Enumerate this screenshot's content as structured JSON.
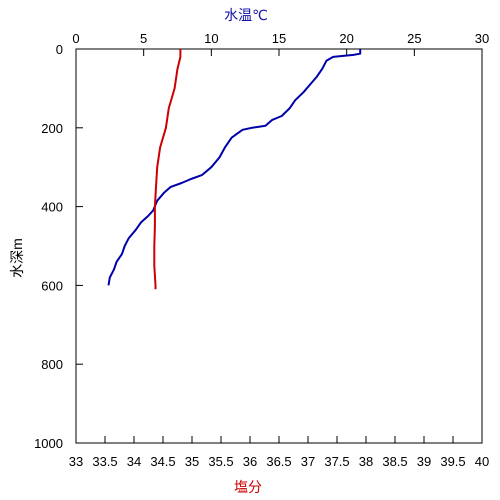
{
  "chart_data": {
    "type": "line",
    "title": "",
    "top_axis": {
      "label": "水温℃",
      "color": "#1111aa",
      "range": [
        0,
        30
      ],
      "ticks": [
        "0",
        "5",
        "10",
        "15",
        "20",
        "25",
        "30"
      ]
    },
    "bottom_axis": {
      "label": "塩分",
      "color": "#cc0000",
      "range": [
        33,
        40
      ],
      "ticks": [
        "33",
        "33.5",
        "34",
        "34.5",
        "35",
        "35.5",
        "36",
        "36.5",
        "37",
        "37.5",
        "38",
        "38.5",
        "39",
        "39.5",
        "40"
      ]
    },
    "y_axis": {
      "label": "水深m",
      "range": [
        0,
        1000
      ],
      "inverted": true,
      "ticks": [
        "0",
        "200",
        "400",
        "600",
        "800",
        "1000"
      ]
    },
    "grid": false,
    "series": [
      {
        "axis": "top",
        "color": "#0000aa",
        "points": [
          [
            21.0,
            0
          ],
          [
            21.0,
            12
          ],
          [
            20.5,
            15
          ],
          [
            19.0,
            20
          ],
          [
            18.5,
            30
          ],
          [
            18.2,
            50
          ],
          [
            17.8,
            70
          ],
          [
            17.3,
            90
          ],
          [
            16.8,
            110
          ],
          [
            16.2,
            130
          ],
          [
            15.8,
            150
          ],
          [
            15.2,
            170
          ],
          [
            14.5,
            180
          ],
          [
            14.0,
            195
          ],
          [
            13.0,
            200
          ],
          [
            12.3,
            205
          ],
          [
            11.5,
            225
          ],
          [
            11.0,
            250
          ],
          [
            10.6,
            275
          ],
          [
            10.0,
            300
          ],
          [
            9.3,
            320
          ],
          [
            8.5,
            330
          ],
          [
            7.8,
            340
          ],
          [
            7.0,
            350
          ],
          [
            6.5,
            365
          ],
          [
            6.0,
            385
          ],
          [
            5.7,
            410
          ],
          [
            5.3,
            425
          ],
          [
            4.8,
            440
          ],
          [
            4.4,
            460
          ],
          [
            3.9,
            480
          ],
          [
            3.6,
            500
          ],
          [
            3.4,
            520
          ],
          [
            3.0,
            540
          ],
          [
            2.8,
            560
          ],
          [
            2.5,
            580
          ],
          [
            2.4,
            600
          ]
        ]
      },
      {
        "axis": "bottom",
        "color": "#cc0000",
        "points": [
          [
            34.8,
            0
          ],
          [
            34.8,
            20
          ],
          [
            34.75,
            50
          ],
          [
            34.7,
            100
          ],
          [
            34.6,
            150
          ],
          [
            34.55,
            200
          ],
          [
            34.45,
            250
          ],
          [
            34.4,
            300
          ],
          [
            34.38,
            350
          ],
          [
            34.36,
            400
          ],
          [
            34.36,
            450
          ],
          [
            34.35,
            500
          ],
          [
            34.35,
            550
          ],
          [
            34.37,
            600
          ],
          [
            34.37,
            610
          ]
        ]
      }
    ]
  }
}
